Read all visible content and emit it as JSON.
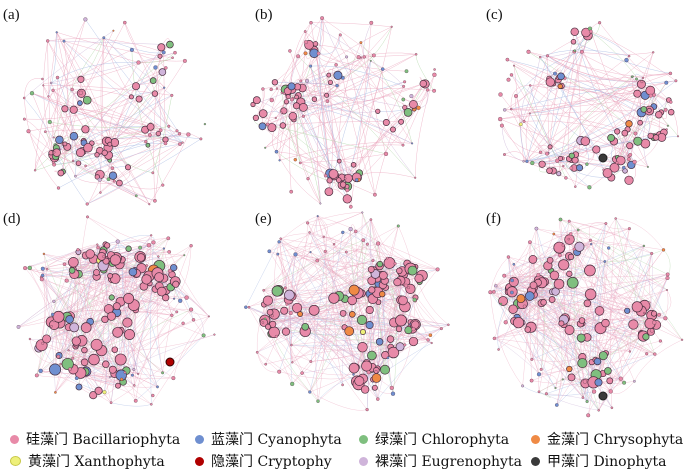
{
  "panels": [
    {
      "label": "(a)",
      "density": "sparse"
    },
    {
      "label": "(b)",
      "density": "sparse"
    },
    {
      "label": "(c)",
      "density": "sparse"
    },
    {
      "label": "(d)",
      "density": "dense"
    },
    {
      "label": "(e)",
      "density": "dense"
    },
    {
      "label": "(f)",
      "density": "dense"
    }
  ],
  "legend": [
    {
      "name": "硅藻门 Bacillariophyta",
      "color": "#e88aa8"
    },
    {
      "name": "蓝藻门 Cyanophyta",
      "color": "#6f8fd0"
    },
    {
      "name": "绿藻门 Chlorophyta",
      "color": "#7fbf7f"
    },
    {
      "name": "金藻门 Chrysophyta",
      "color": "#ef8a45"
    },
    {
      "name": "黄藻门 Xanthophyta",
      "color": "#eef07a"
    },
    {
      "name": "隐藻门 Cryptophy",
      "color": "#b00000"
    },
    {
      "name": "裸藻门 Eugrenophyta",
      "color": "#cfb4da"
    },
    {
      "name": "甲藻门 Dinophyta",
      "color": "#3a3a3a"
    }
  ]
}
